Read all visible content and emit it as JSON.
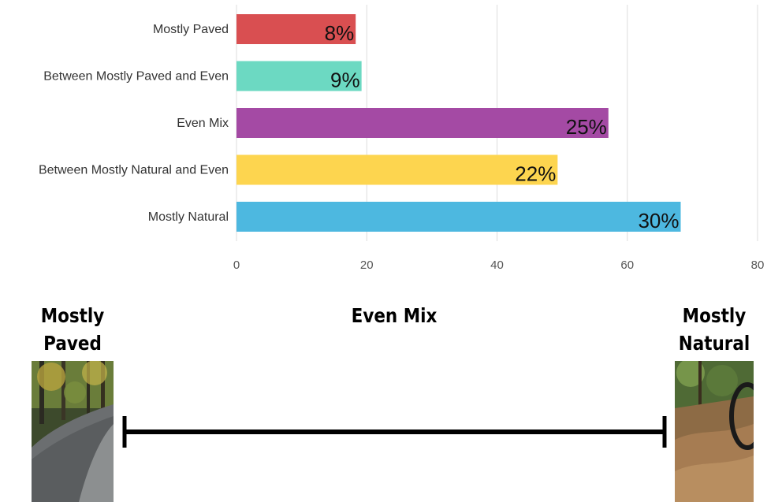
{
  "chart_data": {
    "type": "bar",
    "orientation": "horizontal",
    "categories": [
      "Mostly Paved",
      "Between Mostly Paved and Even",
      "Even Mix",
      "Between Mostly Natural and Even",
      "Mostly Natural"
    ],
    "values": [
      18.3,
      19.2,
      57.1,
      49.3,
      68.2
    ],
    "data_labels": [
      "8%",
      "9%",
      "25%",
      "22%",
      "30%"
    ],
    "colors": [
      "#d94f51",
      "#6cd9c2",
      "#a44aa4",
      "#fdd54f",
      "#4db8e0"
    ],
    "xlim": [
      0,
      80
    ],
    "xticks": [
      0,
      20,
      40,
      60,
      80
    ],
    "grid": true
  },
  "scale": {
    "left_title": "Mostly Paved",
    "center_title": "Even Mix",
    "right_title": "Mostly Natural"
  }
}
